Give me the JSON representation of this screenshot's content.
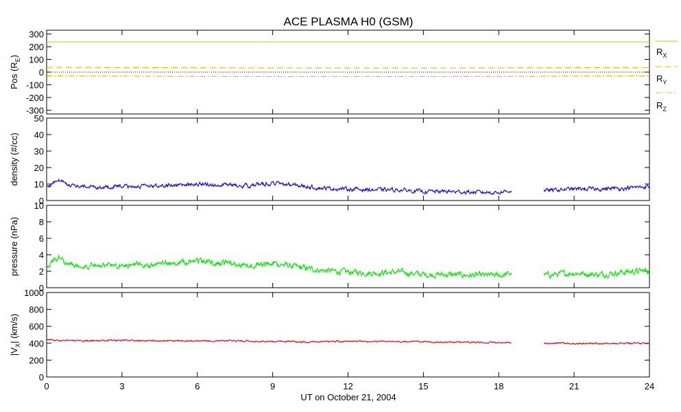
{
  "chart_data": {
    "title": "ACE PLASMA H0 (GSM)",
    "xlabel": "UT on October 21, 2004",
    "x_ticks": [
      "0",
      "3",
      "6",
      "9",
      "12",
      "15",
      "18",
      "21",
      "24"
    ],
    "xlim": [
      0,
      24
    ],
    "gap_hours": [
      18.5,
      19.8
    ],
    "panels": [
      {
        "id": "pos",
        "type": "line",
        "ylabel": "Pos (R",
        "ylabel_sub": "E",
        "ylabel_tail": ")",
        "ylim": [
          -330,
          330
        ],
        "y_ticks": [
          "300",
          "200",
          "100",
          "0",
          "-100",
          "-200",
          "-300"
        ],
        "y_tick_values": [
          300,
          200,
          100,
          0,
          -100,
          -200,
          -300
        ],
        "zero_line": true,
        "legend": [
          {
            "label": "R",
            "sub": "X"
          },
          {
            "label": "R",
            "sub": "Y"
          },
          {
            "label": "R",
            "sub": "Z"
          }
        ],
        "series": [
          {
            "name": "RX",
            "color": "#e6b800",
            "dash": "none",
            "x": [
              0,
              24
            ],
            "y": [
              238,
              238
            ]
          },
          {
            "name": "RY",
            "color": "#f0b000",
            "dash": "9,5",
            "x": [
              0,
              4,
              8,
              12,
              16,
              20,
              24
            ],
            "y": [
              38,
              35,
              33,
              32,
              32,
              34,
              37
            ]
          },
          {
            "name": "RZ",
            "color": "#f0b000",
            "dash": "8,3,2,3",
            "x": [
              0,
              4,
              8,
              12,
              16,
              20,
              24
            ],
            "y": [
              -30,
              -33,
              -35,
              -35,
              -35,
              -33,
              -30
            ]
          }
        ]
      },
      {
        "id": "density",
        "type": "line",
        "ylabel": "density (#/cc)",
        "ylim": [
          0,
          50
        ],
        "y_ticks": [
          "50",
          "40",
          "30",
          "20",
          "10",
          "0"
        ],
        "y_tick_values": [
          50,
          40,
          30,
          20,
          10,
          0
        ],
        "series": [
          {
            "name": "density",
            "color": "#1c10d8",
            "x": [
              0,
              0.3,
              0.5,
              0.8,
              1.2,
              2,
              3,
              4,
              5,
              6,
              7,
              8,
              9,
              10,
              11,
              12,
              13,
              14,
              15,
              16,
              17,
              18,
              18.5,
              19.8,
              21,
              22,
              23,
              24
            ],
            "y": [
              8,
              11,
              12,
              10,
              8.5,
              8,
              8.5,
              8.5,
              9.5,
              10,
              9.5,
              9,
              10.5,
              9,
              7.5,
              7,
              6.5,
              6.5,
              5.5,
              5.5,
              5,
              5,
              6,
              6,
              7,
              7,
              7.5,
              8.5
            ],
            "noise": 0.9
          }
        ]
      },
      {
        "id": "pressure",
        "type": "line",
        "ylabel": "pressure (nPa)",
        "ylim": [
          0,
          10
        ],
        "y_ticks": [
          "10",
          "8",
          "6",
          "4",
          "2",
          "0"
        ],
        "y_tick_values": [
          10,
          8,
          6,
          4,
          2,
          0
        ],
        "series": [
          {
            "name": "pressure",
            "color": "#15e415",
            "x": [
              0,
              0.3,
              0.5,
              0.8,
              1.2,
              2,
              3,
              4,
              5,
              6,
              7,
              8,
              9,
              10,
              11,
              12,
              13,
              14,
              15,
              16,
              17,
              18,
              18.5,
              19.8,
              21,
              22,
              23,
              24
            ],
            "y": [
              2.7,
              3.4,
              3.7,
              3,
              2.7,
              2.6,
              2.8,
              2.7,
              3.0,
              3.2,
              3.0,
              2.7,
              3.0,
              2.5,
              2.1,
              1.9,
              1.8,
              1.9,
              1.6,
              1.6,
              1.5,
              1.5,
              1.7,
              1.5,
              1.8,
              1.6,
              1.9,
              2.1
            ],
            "noise": 0.28
          }
        ]
      },
      {
        "id": "vx",
        "type": "line",
        "ylabel": "|V",
        "ylabel_sub": "X",
        "ylabel_tail": "| (km/s)",
        "ylim": [
          0,
          1000
        ],
        "y_ticks": [
          "1000",
          "800",
          "600",
          "400",
          "200",
          "0"
        ],
        "y_tick_values": [
          1000,
          800,
          600,
          400,
          200,
          0
        ],
        "series": [
          {
            "name": "vx",
            "color": "#d81010",
            "x": [
              0,
              1,
              2,
              3,
              4,
              5,
              6,
              7,
              8,
              9,
              10,
              11,
              12,
              13,
              14,
              15,
              16,
              17,
              18,
              18.5,
              19.8,
              21,
              22,
              23,
              24
            ],
            "y": [
              440,
              432,
              430,
              433,
              430,
              428,
              425,
              428,
              425,
              420,
              418,
              418,
              420,
              418,
              422,
              418,
              415,
              412,
              408,
              408,
              400,
              398,
              395,
              400,
              400
            ],
            "noise": 7
          }
        ]
      }
    ]
  }
}
